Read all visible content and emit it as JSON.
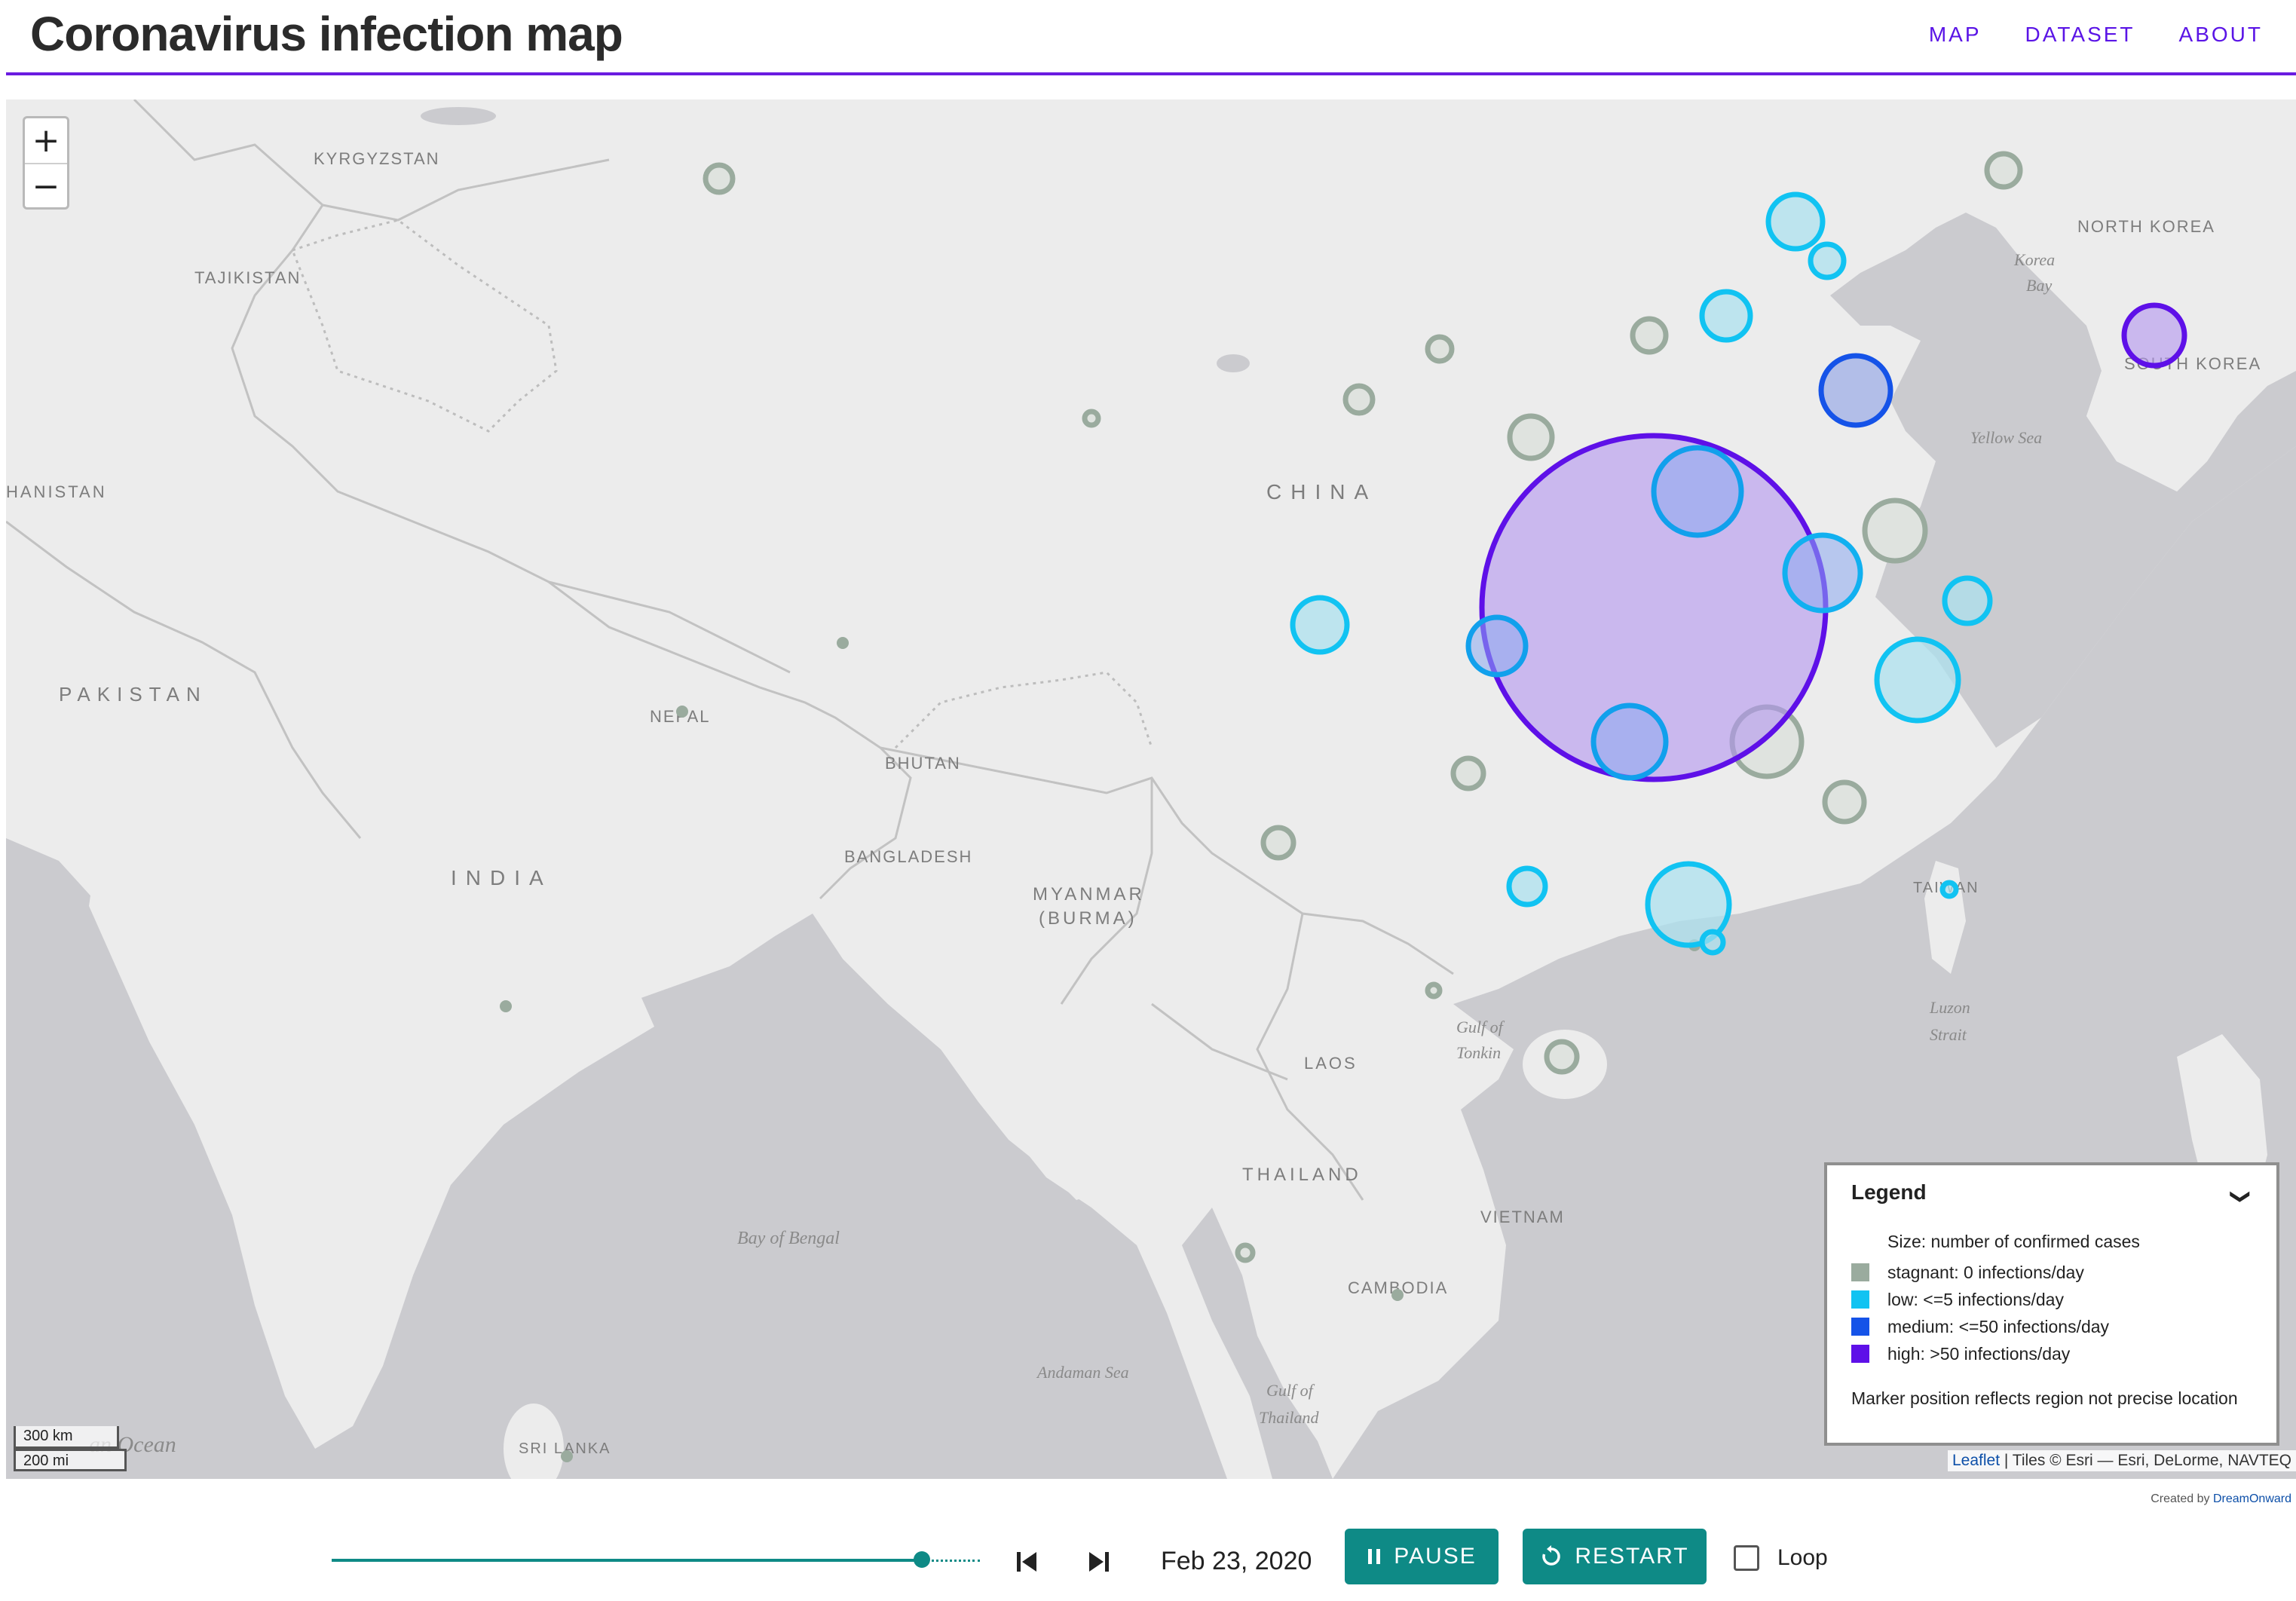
{
  "header": {
    "title": "Coronavirus infection map",
    "nav": [
      "MAP",
      "DATASET",
      "ABOUT"
    ]
  },
  "map": {
    "zoom_in": "+",
    "zoom_out": "−",
    "labels": {
      "kyrgyzstan": "KYRGYZSTAN",
      "tajikistan": "TAJIKISTAN",
      "afghanistan": "HANISTAN",
      "pakistan": "PAKISTAN",
      "nepal": "NEPAL",
      "bhutan": "BHUTAN",
      "bangladesh": "BANGLADESH",
      "india": "INDIA",
      "myanmar_1": "MYANMAR",
      "myanmar_2": "(BURMA)",
      "laos": "LAOS",
      "thailand": "THAILAND",
      "vietnam": "VIETNAM",
      "cambodia": "CAMBODIA",
      "sri_lanka": "SRI LANKA",
      "china": "CHINA",
      "north_korea": "NORTH KOREA",
      "south_korea": "SOUTH KOREA",
      "taiwan": "TAIWAN"
    },
    "water_labels": {
      "korea_bay_1": "Korea",
      "korea_bay_2": "Bay",
      "yellow_sea": "Yellow Sea",
      "gulf_tonkin_1": "Gulf of",
      "gulf_tonkin_2": "Tonkin",
      "luzon_1": "Luzon",
      "luzon_2": "Strait",
      "bay_of_bengal": "Bay of Bengal",
      "andaman_sea": "Andaman Sea",
      "gulf_thailand_1": "Gulf of",
      "gulf_thailand_2": "Thailand",
      "indian_ocean": "an Ocean"
    },
    "scale": {
      "km": "300 km",
      "mi": "200 mi"
    },
    "attribution": {
      "leaflet": "Leaflet",
      "tiles": " | Tiles © Esri — Esri, DeLorme, NAVTEQ"
    },
    "credit": {
      "prefix": "Created by ",
      "name": "DreamOnward"
    },
    "colors": {
      "stagnant": "#9aab9e",
      "low": "#11c3f2",
      "medium": "#1553e8",
      "high": "#5e10e8"
    }
  },
  "legend": {
    "title": "Legend",
    "size_note": "Size: number of confirmed cases",
    "items": [
      {
        "color": "#9aab9e",
        "label": "stagnant: 0 infections/day"
      },
      {
        "color": "#11c3f2",
        "label": "low: <=5 infections/day"
      },
      {
        "color": "#1553e8",
        "label": "medium: <=50 infections/day"
      },
      {
        "color": "#5e10e8",
        "label": "high: >50 infections/day"
      }
    ],
    "note": "Marker position reflects region not precise location"
  },
  "controls": {
    "timeline_progress": 0.91,
    "date": "Feb 23, 2020",
    "pause_label": "PAUSE",
    "restart_label": "RESTART",
    "loop_label": "Loop",
    "loop_checked": false
  }
}
